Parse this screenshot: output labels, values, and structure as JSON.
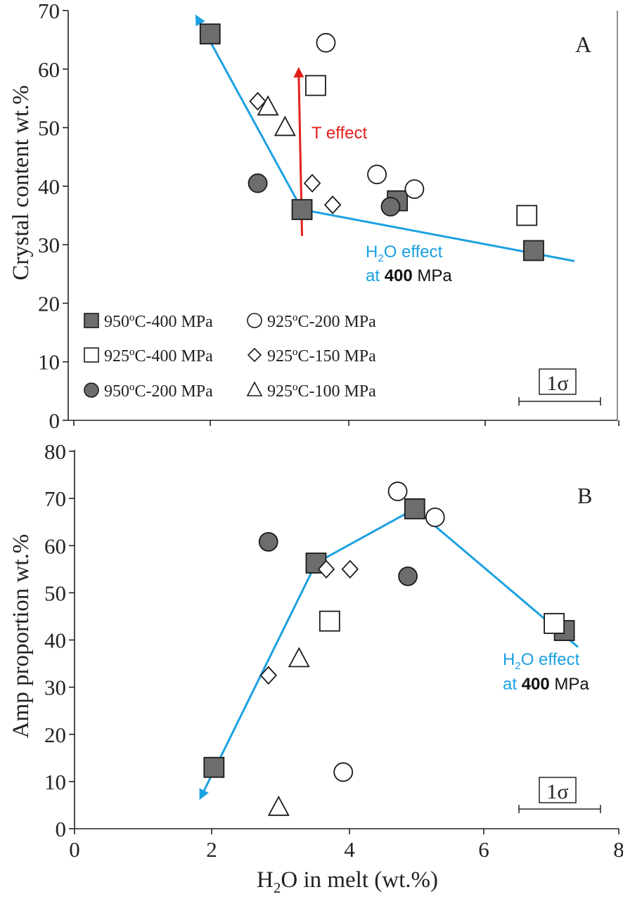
{
  "colors": {
    "blue": "#1ba1e2",
    "red": "#e0201b",
    "gray_fill": "#6d6d6d",
    "axis": "#222222"
  },
  "chart_data": [
    {
      "type": "scatter",
      "panel_label": "A",
      "ylabel": "Crystal content wt.%",
      "xlim": [
        0,
        8
      ],
      "ylim": [
        0,
        70
      ],
      "yticks": [
        "0",
        "10",
        "20",
        "30",
        "40",
        "50",
        "60",
        "70"
      ],
      "series": [
        {
          "name": "950ºC-400 MPa",
          "marker": "square-filled",
          "points": [
            [
              2.0,
              66
            ],
            [
              3.35,
              36
            ],
            [
              4.75,
              37.5
            ],
            [
              6.75,
              29
            ]
          ]
        },
        {
          "name": "925ºC-200 MPa",
          "marker": "circle-open",
          "points": [
            [
              3.7,
              64.5
            ],
            [
              4.45,
              42
            ],
            [
              5.0,
              39.5
            ]
          ]
        },
        {
          "name": "925ºC-400 MPa",
          "marker": "square-open",
          "points": [
            [
              3.55,
              57.2
            ],
            [
              6.65,
              35
            ]
          ]
        },
        {
          "name": "925ºC-150 MPa",
          "marker": "diamond-open",
          "points": [
            [
              2.7,
              54.5
            ],
            [
              3.5,
              40.5
            ],
            [
              3.8,
              36.8
            ]
          ]
        },
        {
          "name": "950ºC-200 MPa",
          "marker": "circle-filled",
          "points": [
            [
              2.7,
              40.5
            ],
            [
              4.65,
              36.5
            ]
          ]
        },
        {
          "name": "925ºC-100 MPa",
          "marker": "triangle-open",
          "points": [
            [
              2.85,
              53.5
            ],
            [
              3.1,
              50
            ]
          ]
        }
      ],
      "trend_line": [
        [
          1.8,
          69
        ],
        [
          3.35,
          36
        ],
        [
          7.35,
          27.2
        ]
      ],
      "t_effect_arrow": [
        [
          3.35,
          31.5
        ],
        [
          3.3,
          60
        ]
      ],
      "t_effect_label": "T effect",
      "h2o_label_line1_pre": "H",
      "h2o_label_line1_sub": "2",
      "h2o_label_line1_post": "O effect",
      "h2o_label_line2_pre": "at ",
      "h2o_label_line2_bold": "400",
      "h2o_label_line2_post": " MPa",
      "sigma_label": "1σ"
    },
    {
      "type": "scatter",
      "panel_label": "B",
      "ylabel": "Amp proportion wt.%",
      "xlabel_pre": "H",
      "xlabel_sub": "2",
      "xlabel_post": "O in melt (wt.%)",
      "xlim": [
        0,
        8
      ],
      "ylim": [
        0,
        80
      ],
      "xticks": [
        "0",
        "2",
        "4",
        "6",
        "8"
      ],
      "yticks": [
        "0",
        "10",
        "20",
        "30",
        "40",
        "50",
        "60",
        "70",
        "80"
      ],
      "series": [
        {
          "name": "950ºC-400 MPa",
          "marker": "square-filled",
          "points": [
            [
              2.05,
              13
            ],
            [
              3.55,
              56.3
            ],
            [
              5.0,
              67.8
            ],
            [
              7.2,
              42
            ]
          ]
        },
        {
          "name": "925ºC-200 MPa",
          "marker": "circle-open",
          "points": [
            [
              4.75,
              71.5
            ],
            [
              5.3,
              66
            ],
            [
              3.95,
              12
            ]
          ]
        },
        {
          "name": "925ºC-400 MPa",
          "marker": "square-open",
          "points": [
            [
              3.75,
              44
            ],
            [
              7.05,
              43.5
            ]
          ]
        },
        {
          "name": "925ºC-150 MPa",
          "marker": "diamond-open",
          "points": [
            [
              2.85,
              32.5
            ],
            [
              3.7,
              55
            ],
            [
              4.05,
              55
            ]
          ]
        },
        {
          "name": "950ºC-200 MPa",
          "marker": "circle-filled",
          "points": [
            [
              2.85,
              60.8
            ],
            [
              4.9,
              53.5
            ]
          ]
        },
        {
          "name": "925ºC-100 MPa",
          "marker": "triangle-open",
          "points": [
            [
              3.3,
              36
            ],
            [
              3.0,
              4.5
            ]
          ]
        }
      ],
      "trend_line": [
        [
          1.85,
          6.5
        ],
        [
          3.55,
          56.3
        ],
        [
          5.0,
          67.8
        ],
        [
          7.4,
          38.5
        ]
      ],
      "h2o_label_line1_pre": "H",
      "h2o_label_line1_sub": "2",
      "h2o_label_line1_post": "O effect",
      "h2o_label_line2_pre": "at ",
      "h2o_label_line2_bold": "400",
      "h2o_label_line2_post": " MPa",
      "sigma_label": "1σ"
    }
  ]
}
